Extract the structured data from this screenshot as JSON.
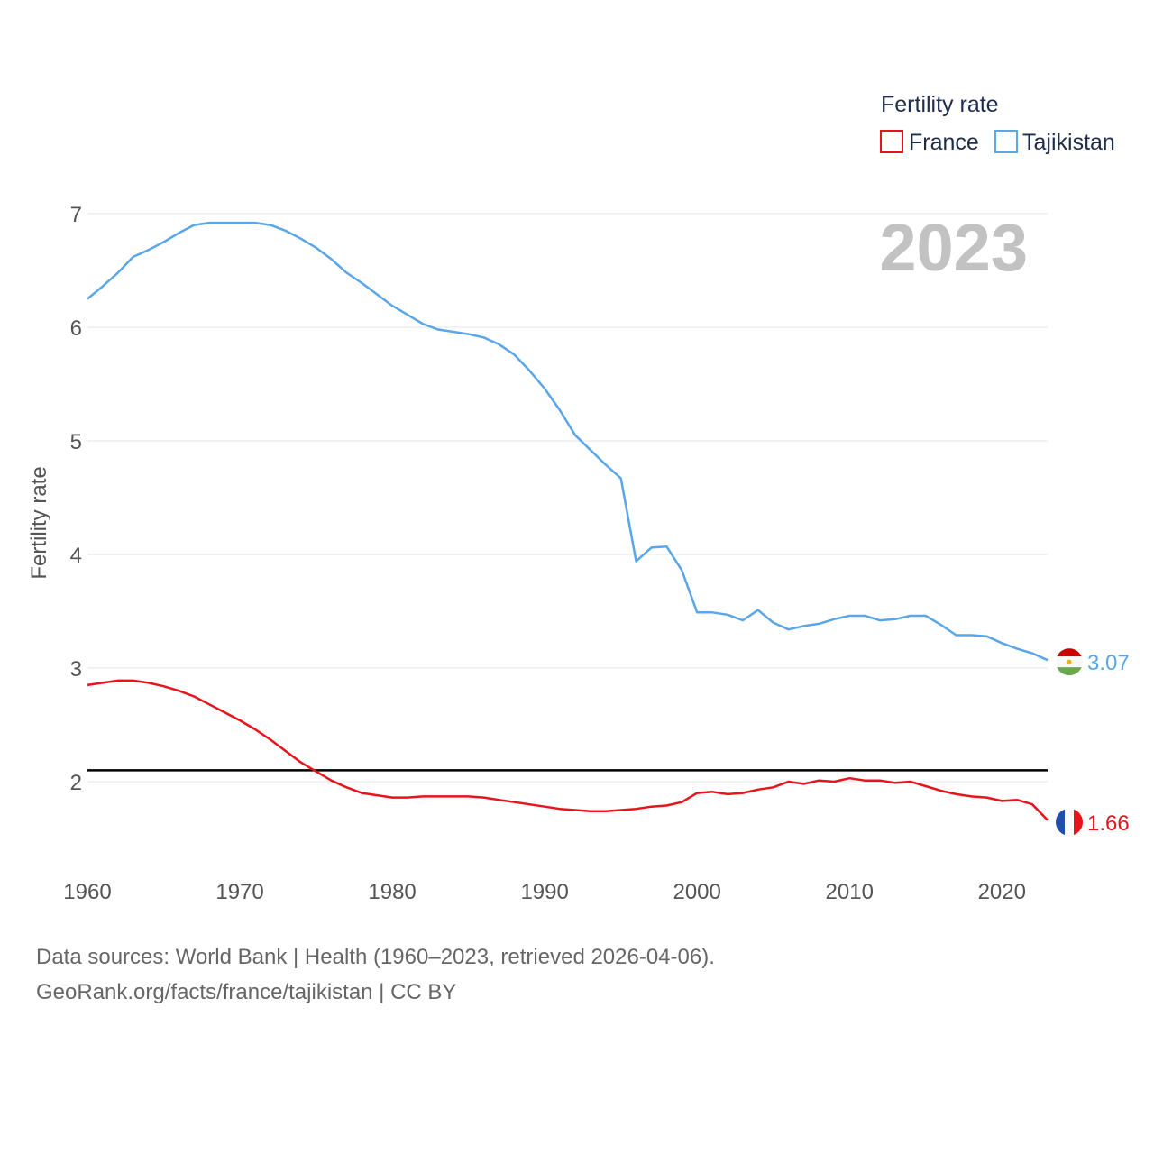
{
  "chart_data": {
    "type": "line",
    "title": "Fertility rate",
    "ylabel": "Fertility rate",
    "xlabel": "",
    "year_label": "2023",
    "xlim": [
      1960,
      2023
    ],
    "ylim": [
      1.3,
      7.2
    ],
    "xticks": [
      "1960",
      "1970",
      "1980",
      "1990",
      "2000",
      "2010",
      "2020"
    ],
    "yticks": [
      "2",
      "3",
      "4",
      "5",
      "6",
      "7"
    ],
    "reference_line": 2.1,
    "legend_position": "top-right",
    "series": [
      {
        "name": "France",
        "color": "#e8141c",
        "end_label": "1.66",
        "x": [
          1960,
          1961,
          1962,
          1963,
          1964,
          1965,
          1966,
          1967,
          1968,
          1969,
          1970,
          1971,
          1972,
          1973,
          1974,
          1975,
          1976,
          1977,
          1978,
          1979,
          1980,
          1981,
          1982,
          1983,
          1984,
          1985,
          1986,
          1987,
          1988,
          1989,
          1990,
          1991,
          1992,
          1993,
          1994,
          1995,
          1996,
          1997,
          1998,
          1999,
          2000,
          2001,
          2002,
          2003,
          2004,
          2005,
          2006,
          2007,
          2008,
          2009,
          2010,
          2011,
          2012,
          2013,
          2014,
          2015,
          2016,
          2017,
          2018,
          2019,
          2020,
          2021,
          2022,
          2023
        ],
        "values": [
          2.85,
          2.87,
          2.89,
          2.89,
          2.87,
          2.84,
          2.8,
          2.75,
          2.68,
          2.61,
          2.54,
          2.46,
          2.37,
          2.27,
          2.17,
          2.09,
          2.01,
          1.95,
          1.9,
          1.88,
          1.86,
          1.86,
          1.87,
          1.87,
          1.87,
          1.87,
          1.86,
          1.84,
          1.82,
          1.8,
          1.78,
          1.76,
          1.75,
          1.74,
          1.74,
          1.75,
          1.76,
          1.78,
          1.79,
          1.82,
          1.9,
          1.91,
          1.89,
          1.9,
          1.93,
          1.95,
          2.0,
          1.98,
          2.01,
          2.0,
          2.03,
          2.01,
          2.01,
          1.99,
          2.0,
          1.96,
          1.92,
          1.89,
          1.87,
          1.86,
          1.83,
          1.84,
          1.8,
          1.66
        ]
      },
      {
        "name": "Tajikistan",
        "color": "#5aa6e8",
        "end_label": "3.07",
        "x": [
          1960,
          1961,
          1962,
          1963,
          1964,
          1965,
          1966,
          1967,
          1968,
          1969,
          1970,
          1971,
          1972,
          1973,
          1974,
          1975,
          1976,
          1977,
          1978,
          1979,
          1980,
          1981,
          1982,
          1983,
          1984,
          1985,
          1986,
          1987,
          1988,
          1989,
          1990,
          1991,
          1992,
          1993,
          1994,
          1995,
          1996,
          1997,
          1998,
          1999,
          2000,
          2001,
          2002,
          2003,
          2004,
          2005,
          2006,
          2007,
          2008,
          2009,
          2010,
          2011,
          2012,
          2013,
          2014,
          2015,
          2016,
          2017,
          2018,
          2019,
          2020,
          2021,
          2022,
          2023
        ],
        "values": [
          6.25,
          6.36,
          6.48,
          6.62,
          6.68,
          6.75,
          6.83,
          6.9,
          6.92,
          6.92,
          6.92,
          6.92,
          6.9,
          6.85,
          6.78,
          6.7,
          6.6,
          6.48,
          6.39,
          6.29,
          6.19,
          6.11,
          6.03,
          5.98,
          5.96,
          5.94,
          5.91,
          5.85,
          5.76,
          5.62,
          5.46,
          5.27,
          5.05,
          4.92,
          4.79,
          4.67,
          3.94,
          4.06,
          4.07,
          3.86,
          3.49,
          3.49,
          3.47,
          3.42,
          3.51,
          3.4,
          3.34,
          3.37,
          3.39,
          3.43,
          3.46,
          3.46,
          3.42,
          3.43,
          3.46,
          3.46,
          3.38,
          3.29,
          3.29,
          3.28,
          3.22,
          3.17,
          3.13,
          3.07
        ]
      }
    ]
  },
  "legend": {
    "title": "Fertility rate",
    "items": [
      "France",
      "Tajikistan"
    ]
  },
  "footer": {
    "line1": "Data sources: World Bank | Health (1960–2023, retrieved 2026-04-06).",
    "line2": "GeoRank.org/facts/france/tajikistan | CC BY"
  },
  "flags": {
    "france": "france-flag-icon",
    "tajikistan": "tajikistan-flag-icon"
  }
}
